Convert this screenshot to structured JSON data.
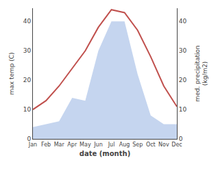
{
  "chart_data": {
    "type": "line",
    "categories": [
      "Jan",
      "Feb",
      "Mar",
      "Apr",
      "May",
      "Jun",
      "Jul",
      "Aug",
      "Sep",
      "Oct",
      "Nov",
      "Dec"
    ],
    "series": [
      {
        "type": "area",
        "axis": "y2",
        "color": "#c5d5ef",
        "values": [
          4,
          5,
          6,
          14,
          13,
          30,
          40,
          40,
          22,
          8,
          5,
          5
        ]
      },
      {
        "type": "line",
        "color": "#c0504d",
        "values": [
          10,
          13,
          18,
          24,
          30,
          38,
          44,
          43,
          37,
          28,
          18,
          11
        ]
      }
    ],
    "xlabel": "date (month)",
    "ylabel": "max temp (C)",
    "y2label": "med. precipitation\n(kg/m2)",
    "ylim": [
      0,
      44.5
    ],
    "yticks": [
      0,
      10,
      20,
      30,
      40
    ],
    "y2lim": [
      0,
      44.5
    ],
    "y2ticks": [
      0,
      10,
      20,
      30,
      40
    ],
    "grid": false
  }
}
